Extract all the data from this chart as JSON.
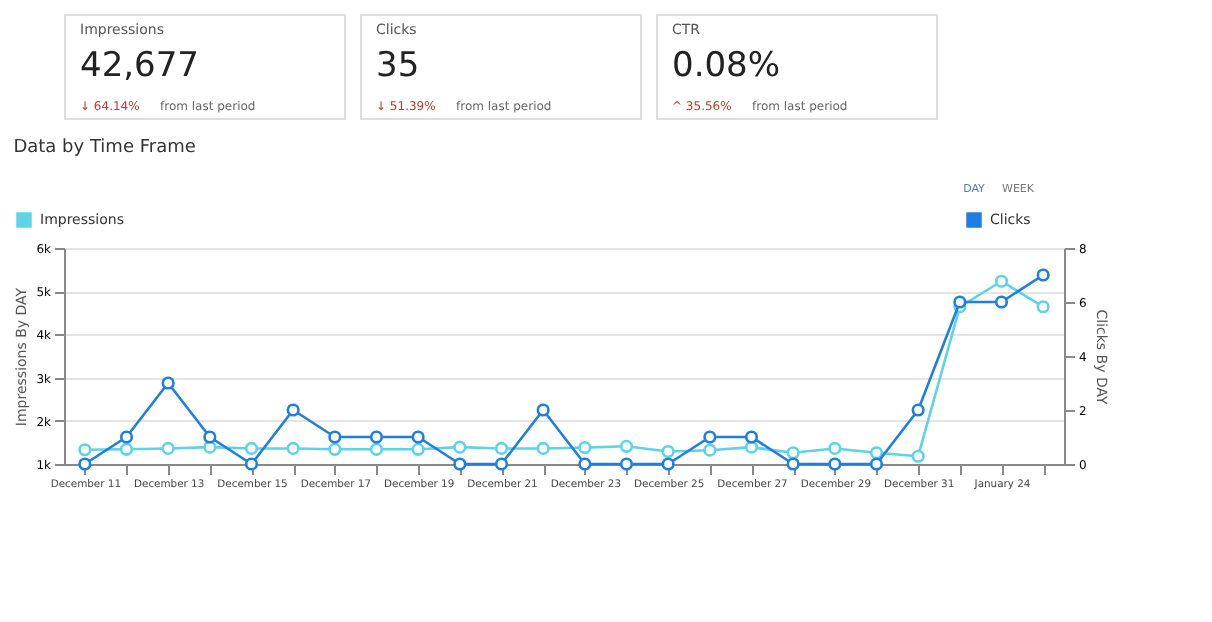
{
  "chart_data": [
    {
      "type": "other",
      "title": "Impressions",
      "annotations": [
        "42,677",
        "↓ 64.14%",
        "from last period"
      ]
    },
    {
      "type": "other",
      "title": "Clicks",
      "annotations": [
        "35",
        "↓ 51.39%",
        "from last period"
      ]
    },
    {
      "type": "other",
      "title": "CTR",
      "annotations": [
        "0.08%",
        "^ 35.56%",
        "from last period"
      ]
    },
    {
      "type": "line",
      "title": "Data by Time Frame",
      "ylabel": "Impressions By DAY",
      "y2label": "Clicks By DAY",
      "annotations": [
        "DAY",
        "WEEK"
      ],
      "categories": [
        "December 11",
        null,
        "December 13",
        null,
        "December 15",
        null,
        "December 17",
        null,
        "December 19",
        null,
        "December 21",
        null,
        "December 23",
        null,
        "December 25",
        null,
        "December 27",
        null,
        "December 29",
        null,
        "December 31",
        null,
        "January 24",
        null
      ],
      "series": [
        {
          "name": "Impressions",
          "color": "#5dd3e6",
          "values": [
            1330,
            1340,
            1360,
            1390,
            1360,
            1360,
            1340,
            1340,
            1340,
            1390,
            1360,
            1360,
            1380,
            1410,
            1290,
            1320,
            1390,
            1260,
            1360,
            1260,
            1180,
            4640,
            5230,
            4640
          ]
        },
        {
          "name": "Clicks",
          "color": "#1f7fe0",
          "axis": "y2",
          "values": [
            0,
            1,
            3,
            1,
            0,
            2,
            1,
            1,
            1,
            0,
            0,
            2,
            0,
            0,
            0,
            1,
            1,
            0,
            0,
            0,
            2,
            6,
            6,
            7
          ]
        }
      ],
      "ylim": [
        1000,
        6000
      ],
      "yticks": [
        {
          "value": 1000,
          "label": "1k"
        },
        {
          "value": 2000,
          "label": "2k"
        },
        {
          "value": 3000,
          "label": "3k"
        },
        {
          "value": 4000,
          "label": "4k"
        },
        {
          "value": 5000,
          "label": "5k"
        },
        {
          "value": 6000,
          "label": "6k"
        }
      ],
      "y2lim": [
        0,
        8
      ],
      "y2ticks": [
        0,
        2,
        4,
        6,
        8
      ],
      "grid": "y",
      "legend": "top",
      "marker": "circle",
      "line_style": "solid"
    }
  ]
}
